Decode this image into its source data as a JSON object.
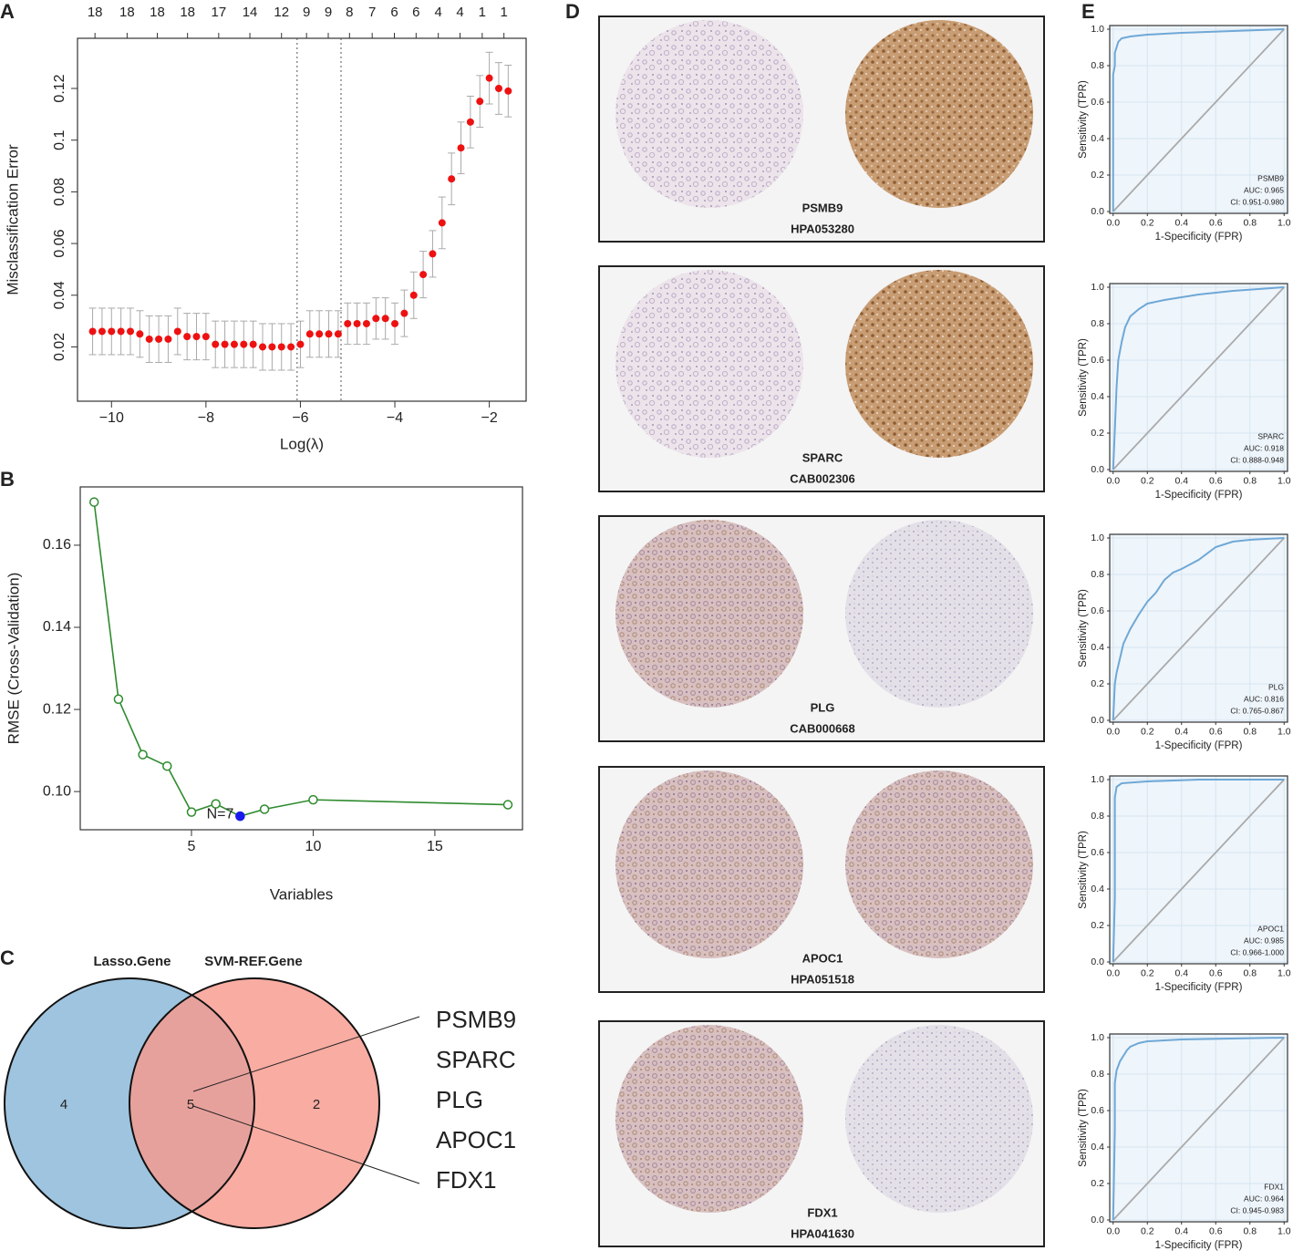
{
  "chart_data": [
    {
      "type": "errorbar",
      "panel_label": "A",
      "xlabel": "Log(λ)",
      "ylabel": "Misclassification Error",
      "xlim": [
        -10.72,
        -1.22
      ],
      "ylim": [
        -0.001,
        0.1394
      ],
      "xticks": [
        {
          "value": -10,
          "label": "−10"
        },
        {
          "value": -8,
          "label": "−8"
        },
        {
          "value": -6,
          "label": "−6"
        },
        {
          "value": -4,
          "label": "−4"
        },
        {
          "value": -2,
          "label": "−2"
        }
      ],
      "yticks": [
        0.02,
        0.04,
        0.06,
        0.08,
        0.1,
        0.12
      ],
      "top_ticks": [
        {
          "value": -10.35,
          "label": "18"
        },
        {
          "value": -9.67,
          "label": "18"
        },
        {
          "value": -9.03,
          "label": "18"
        },
        {
          "value": -8.39,
          "label": "18"
        },
        {
          "value": -7.73,
          "label": "17"
        },
        {
          "value": -7.07,
          "label": "14"
        },
        {
          "value": -6.4,
          "label": "12"
        },
        {
          "value": -5.87,
          "label": "9"
        },
        {
          "value": -5.41,
          "label": "9"
        },
        {
          "value": -4.96,
          "label": "8"
        },
        {
          "value": -4.48,
          "label": "7"
        },
        {
          "value": -4.01,
          "label": "6"
        },
        {
          "value": -3.55,
          "label": "6"
        },
        {
          "value": -3.08,
          "label": "4"
        },
        {
          "value": -2.62,
          "label": "4"
        },
        {
          "value": -2.15,
          "label": "1"
        },
        {
          "value": -1.69,
          "label": "1"
        }
      ],
      "vlines": [
        -6.07,
        -5.14
      ],
      "color": "#ee1111",
      "error_color": "#aaaaaa",
      "x": [
        -10.4,
        -10.2,
        -10.0,
        -9.8,
        -9.6,
        -9.4,
        -9.2,
        -9.0,
        -8.8,
        -8.6,
        -8.4,
        -8.2,
        -8.0,
        -7.8,
        -7.6,
        -7.4,
        -7.2,
        -7.0,
        -6.8,
        -6.6,
        -6.4,
        -6.2,
        -6.0,
        -5.8,
        -5.6,
        -5.4,
        -5.2,
        -5.0,
        -4.8,
        -4.6,
        -4.4,
        -4.2,
        -4.0,
        -3.8,
        -3.6,
        -3.4,
        -3.2,
        -3.0,
        -2.8,
        -2.6,
        -2.4,
        -2.2,
        -2.0,
        -1.8,
        -1.6
      ],
      "values": [
        0.026,
        0.026,
        0.026,
        0.026,
        0.026,
        0.025,
        0.023,
        0.023,
        0.023,
        0.026,
        0.024,
        0.024,
        0.024,
        0.021,
        0.021,
        0.021,
        0.021,
        0.021,
        0.02,
        0.02,
        0.02,
        0.02,
        0.021,
        0.025,
        0.025,
        0.025,
        0.025,
        0.029,
        0.029,
        0.029,
        0.031,
        0.031,
        0.029,
        0.033,
        0.04,
        0.048,
        0.056,
        0.068,
        0.085,
        0.097,
        0.107,
        0.115,
        0.124,
        0.12,
        0.119
      ],
      "errors": [
        0.009,
        0.009,
        0.009,
        0.009,
        0.009,
        0.009,
        0.009,
        0.009,
        0.009,
        0.009,
        0.009,
        0.009,
        0.009,
        0.009,
        0.009,
        0.009,
        0.009,
        0.009,
        0.009,
        0.009,
        0.009,
        0.009,
        0.009,
        0.009,
        0.009,
        0.009,
        0.009,
        0.008,
        0.008,
        0.008,
        0.008,
        0.008,
        0.008,
        0.009,
        0.009,
        0.009,
        0.009,
        0.01,
        0.01,
        0.01,
        0.01,
        0.01,
        0.01,
        0.01,
        0.01
      ]
    },
    {
      "type": "line",
      "panel_label": "B",
      "xlabel": "Variables",
      "ylabel": "RMSE (Cross-Validation)",
      "xlim": [
        0.43,
        18.6
      ],
      "ylim": [
        0.0907,
        0.1742
      ],
      "xticks": [
        5,
        10,
        15
      ],
      "yticks": [
        {
          "value": 0.1,
          "label": "0.10"
        },
        0.12,
        0.14,
        0.16
      ],
      "series": [
        {
          "color": "#2e8b2e",
          "x": [
            1,
            2,
            3,
            4,
            5,
            6,
            7,
            8,
            10,
            18
          ],
          "values": [
            0.1705,
            0.1225,
            0.109,
            0.1062,
            0.095,
            0.097,
            0.094,
            0.0957,
            0.098,
            0.0968
          ]
        },
        {
          "color": "#1a1aee",
          "x": [
            7
          ],
          "values": [
            0.094
          ]
        }
      ],
      "annotations": [
        {
          "text": "N=7",
          "x": 7,
          "y": 0.094,
          "color": "#ee6680"
        }
      ]
    },
    {
      "type": "venn",
      "panel_label": "C",
      "sets": [
        {
          "name": "Lasso.Gene",
          "label_color": "#6fa3d0",
          "fill": "#9ec4df",
          "only": 4
        },
        {
          "name": "SVM-REF.Gene",
          "label_color": "#f07a6c",
          "fill": "#f79a8e",
          "only": 2
        }
      ],
      "intersection": 5,
      "genes": [
        "PSMB9",
        "SPARC",
        "PLG",
        "APOC1",
        "FDX1"
      ]
    },
    {
      "type": "roc",
      "panel_label": "E",
      "xlabel": "1-Specificity (FPR)",
      "ylabel": "Sensitivity (TPR)",
      "grid": true,
      "xlim": [
        -0.02,
        1.02
      ],
      "ylim": [
        -0.01,
        1.02
      ],
      "xticks": [
        {
          "value": 0,
          "label": "0.0"
        },
        0.2,
        0.4,
        0.6,
        0.8,
        {
          "value": 1,
          "label": "1.0"
        }
      ],
      "yticks": [
        {
          "value": 0,
          "label": "0.0"
        },
        0.2,
        0.4,
        0.6,
        0.8,
        {
          "value": 1,
          "label": "1.0"
        }
      ],
      "annotations": [
        "PSMB9",
        "AUC: 0.965",
        "CI: 0.951-0.980"
      ],
      "series": [
        {
          "color": "#6fa8d6",
          "x": [
            0,
            0,
            0.01,
            0.01,
            0.02,
            0.03,
            0.05,
            0.1,
            0.2,
            0.4,
            0.7,
            1
          ],
          "values": [
            0,
            0.75,
            0.8,
            0.87,
            0.9,
            0.93,
            0.95,
            0.96,
            0.97,
            0.98,
            0.99,
            1
          ]
        }
      ]
    },
    {
      "type": "roc",
      "xlabel": "1-Specificity (FPR)",
      "ylabel": "Sensitivity (TPR)",
      "grid": true,
      "xlim": [
        -0.02,
        1.02
      ],
      "ylim": [
        -0.01,
        1.02
      ],
      "xticks": [
        {
          "value": 0,
          "label": "0.0"
        },
        0.2,
        0.4,
        0.6,
        0.8,
        {
          "value": 1,
          "label": "1.0"
        }
      ],
      "yticks": [
        {
          "value": 0,
          "label": "0.0"
        },
        0.2,
        0.4,
        0.6,
        0.8,
        {
          "value": 1,
          "label": "1.0"
        }
      ],
      "annotations": [
        "SPARC",
        "AUC: 0.918",
        "CI: 0.888-0.948"
      ],
      "series": [
        {
          "color": "#6fa8d6",
          "x": [
            0,
            0.01,
            0.02,
            0.03,
            0.05,
            0.07,
            0.1,
            0.15,
            0.2,
            0.3,
            0.5,
            0.7,
            1
          ],
          "values": [
            0,
            0.22,
            0.45,
            0.6,
            0.7,
            0.78,
            0.84,
            0.88,
            0.91,
            0.93,
            0.96,
            0.98,
            1
          ]
        }
      ]
    },
    {
      "type": "roc",
      "xlabel": "1-Specificity (FPR)",
      "ylabel": "Sensitivity (TPR)",
      "grid": true,
      "xlim": [
        -0.02,
        1.02
      ],
      "ylim": [
        -0.01,
        1.02
      ],
      "xticks": [
        {
          "value": 0,
          "label": "0.0"
        },
        0.2,
        0.4,
        0.6,
        0.8,
        {
          "value": 1,
          "label": "1.0"
        }
      ],
      "yticks": [
        {
          "value": 0,
          "label": "0.0"
        },
        0.2,
        0.4,
        0.6,
        0.8,
        {
          "value": 1,
          "label": "1.0"
        }
      ],
      "annotations": [
        "PLG",
        "AUC: 0.816",
        "CI: 0.765-0.867"
      ],
      "series": [
        {
          "color": "#6fa8d6",
          "x": [
            0,
            0.01,
            0.02,
            0.04,
            0.06,
            0.1,
            0.15,
            0.2,
            0.25,
            0.3,
            0.35,
            0.4,
            0.5,
            0.6,
            0.7,
            0.8,
            1
          ],
          "values": [
            0,
            0.2,
            0.26,
            0.34,
            0.42,
            0.5,
            0.58,
            0.65,
            0.7,
            0.77,
            0.81,
            0.83,
            0.88,
            0.95,
            0.98,
            0.99,
            1
          ]
        }
      ]
    },
    {
      "type": "roc",
      "xlabel": "1-Specificity (FPR)",
      "ylabel": "Sensitivity (TPR)",
      "grid": true,
      "xlim": [
        -0.02,
        1.02
      ],
      "ylim": [
        -0.01,
        1.02
      ],
      "xticks": [
        {
          "value": 0,
          "label": "0.0"
        },
        0.2,
        0.4,
        0.6,
        0.8,
        {
          "value": 1,
          "label": "1.0"
        }
      ],
      "yticks": [
        {
          "value": 0,
          "label": "0.0"
        },
        0.2,
        0.4,
        0.6,
        0.8,
        {
          "value": 1,
          "label": "1.0"
        }
      ],
      "annotations": [
        "APOC1",
        "AUC: 0.985",
        "CI: 0.966-1.000"
      ],
      "series": [
        {
          "color": "#6fa8d6",
          "x": [
            0,
            0.01,
            0.01,
            0.02,
            0.05,
            0.2,
            0.5,
            1
          ],
          "values": [
            0,
            0.35,
            0.9,
            0.96,
            0.98,
            0.99,
            1,
            1
          ]
        }
      ]
    },
    {
      "type": "roc",
      "xlabel": "1-Specificity (FPR)",
      "ylabel": "Sensitivity (TPR)",
      "grid": true,
      "xlim": [
        -0.02,
        1.02
      ],
      "ylim": [
        -0.01,
        1.02
      ],
      "xticks": [
        {
          "value": 0,
          "label": "0.0"
        },
        0.2,
        0.4,
        0.6,
        0.8,
        {
          "value": 1,
          "label": "1.0"
        }
      ],
      "yticks": [
        {
          "value": 0,
          "label": "0.0"
        },
        0.2,
        0.4,
        0.6,
        0.8,
        {
          "value": 1,
          "label": "1.0"
        }
      ],
      "annotations": [
        "FDX1",
        "AUC: 0.964",
        "CI: 0.945-0.983"
      ],
      "series": [
        {
          "color": "#6fa8d6",
          "x": [
            0,
            0.01,
            0.01,
            0.02,
            0.04,
            0.06,
            0.08,
            0.1,
            0.15,
            0.2,
            0.4,
            1
          ],
          "values": [
            0,
            0.5,
            0.75,
            0.82,
            0.87,
            0.9,
            0.93,
            0.95,
            0.97,
            0.98,
            0.99,
            1
          ]
        }
      ]
    }
  ],
  "panel_d": {
    "label": "D",
    "panels": [
      {
        "gene": "PSMB9",
        "antibody": "HPA053280"
      },
      {
        "gene": "SPARC",
        "antibody": "CAB002306"
      },
      {
        "gene": "PLG",
        "antibody": "CAB000668"
      },
      {
        "gene": "APOC1",
        "antibody": "HPA051518"
      },
      {
        "gene": "FDX1",
        "antibody": "HPA041630"
      }
    ]
  }
}
